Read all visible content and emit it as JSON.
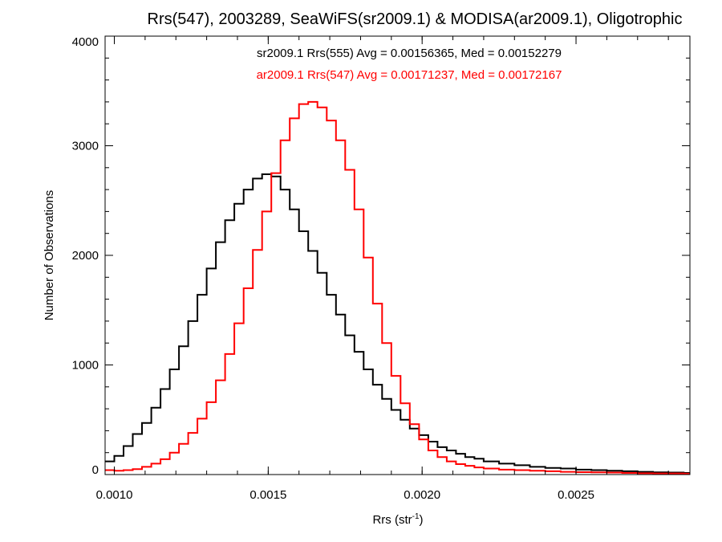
{
  "chart_data": {
    "type": "line",
    "title": "Rrs(547), 2003289, SeaWiFS(sr2009.1) & MODISA(ar2009.1), Oligotrophic",
    "xlabel": "Rrs (str",
    "xlabel_sup": "-1",
    "xlabel_close": ")",
    "ylabel": "Number of Observations",
    "xlim": [
      0.00097,
      0.00287
    ],
    "ylim": [
      0,
      4000
    ],
    "x_ticks": [
      0.001,
      0.0015,
      0.002,
      0.0025
    ],
    "x_tick_labels": [
      "0.0010",
      "0.0015",
      "0.0020",
      "0.0025"
    ],
    "y_ticks": [
      0,
      1000,
      2000,
      3000,
      4000
    ],
    "y_tick_labels": [
      "0",
      "1000",
      "2000",
      "3000",
      "4000"
    ],
    "grid": false,
    "legend_position": "top-center",
    "series": [
      {
        "name": "sr2009.1 Rrs(555) Avg = 0.00156365, Med = 0.00152279",
        "color": "#000000",
        "x": [
          0.00097,
          0.001,
          0.00103,
          0.00106,
          0.00109,
          0.00112,
          0.00115,
          0.00118,
          0.00121,
          0.00124,
          0.00127,
          0.0013,
          0.00133,
          0.00136,
          0.00139,
          0.00142,
          0.00145,
          0.00148,
          0.00151,
          0.00154,
          0.00157,
          0.0016,
          0.00163,
          0.00166,
          0.00169,
          0.00172,
          0.00175,
          0.00178,
          0.00181,
          0.00184,
          0.00187,
          0.0019,
          0.00193,
          0.00196,
          0.00199,
          0.00202,
          0.00205,
          0.00208,
          0.00211,
          0.00214,
          0.00217,
          0.0022,
          0.00225,
          0.0023,
          0.00235,
          0.0024,
          0.00245,
          0.0025,
          0.00255,
          0.0026,
          0.00265,
          0.0027,
          0.00275,
          0.0028,
          0.00285,
          0.00287
        ],
        "values": [
          120,
          170,
          260,
          370,
          470,
          610,
          780,
          960,
          1170,
          1400,
          1640,
          1880,
          2120,
          2320,
          2470,
          2600,
          2700,
          2740,
          2720,
          2600,
          2420,
          2220,
          2040,
          1840,
          1640,
          1460,
          1270,
          1120,
          960,
          820,
          690,
          590,
          500,
          420,
          360,
          300,
          250,
          220,
          190,
          160,
          145,
          120,
          100,
          85,
          70,
          60,
          55,
          45,
          40,
          35,
          30,
          25,
          20,
          18,
          15,
          15
        ]
      },
      {
        "name": "ar2009.1 Rrs(547) Avg = 0.00171237, Med = 0.00172167",
        "color": "#ff0000",
        "x": [
          0.00097,
          0.001,
          0.00103,
          0.00106,
          0.00109,
          0.00112,
          0.00115,
          0.00118,
          0.00121,
          0.00124,
          0.00127,
          0.0013,
          0.00133,
          0.00136,
          0.00139,
          0.00142,
          0.00145,
          0.00148,
          0.00151,
          0.00154,
          0.00157,
          0.0016,
          0.00163,
          0.00166,
          0.00169,
          0.00172,
          0.00175,
          0.00178,
          0.00181,
          0.00184,
          0.00187,
          0.0019,
          0.00193,
          0.00196,
          0.00199,
          0.00202,
          0.00205,
          0.00208,
          0.00211,
          0.00214,
          0.00217,
          0.0022,
          0.00225,
          0.0023,
          0.00235,
          0.0024,
          0.00245,
          0.0025,
          0.00255,
          0.0026,
          0.00265,
          0.0027,
          0.00275,
          0.0028,
          0.00285,
          0.00287
        ],
        "values": [
          40,
          35,
          40,
          50,
          70,
          100,
          140,
          200,
          280,
          380,
          510,
          660,
          860,
          1100,
          1380,
          1700,
          2050,
          2400,
          2750,
          3050,
          3250,
          3380,
          3400,
          3350,
          3230,
          3050,
          2780,
          2420,
          1980,
          1560,
          1200,
          900,
          650,
          460,
          320,
          220,
          160,
          120,
          95,
          80,
          65,
          55,
          45,
          40,
          35,
          30,
          25,
          22,
          20,
          18,
          15,
          12,
          10,
          10,
          8,
          8
        ]
      }
    ]
  }
}
